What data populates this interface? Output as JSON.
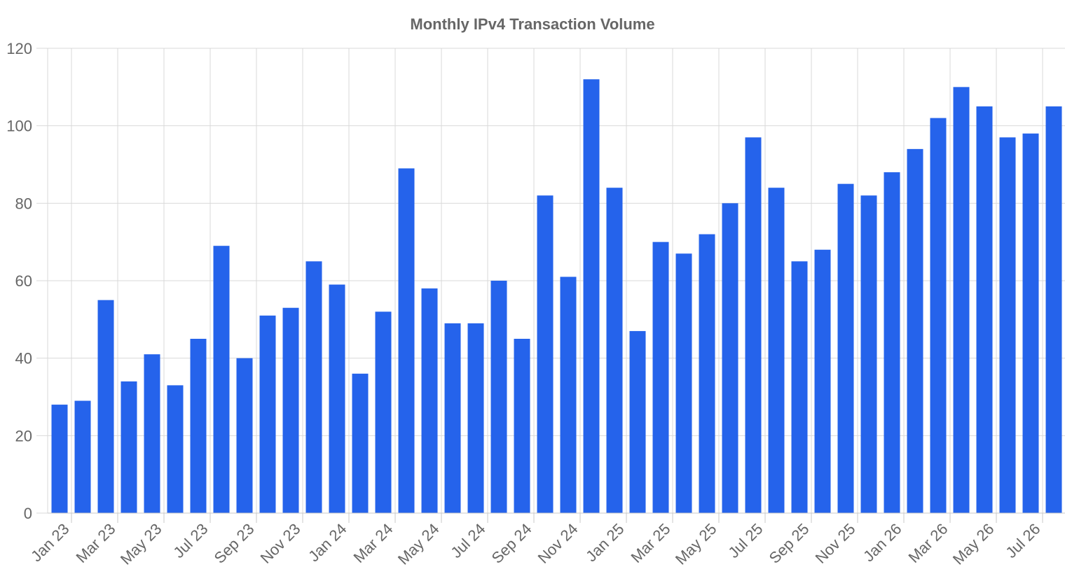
{
  "chart_data": {
    "type": "bar",
    "title": "Monthly IPv4 Transaction Volume",
    "xlabel": "",
    "ylabel": "",
    "ylim": [
      0,
      120
    ],
    "yticks": [
      0,
      20,
      40,
      60,
      80,
      100,
      120
    ],
    "grid": true,
    "bar_color": "#2563eb",
    "categories": [
      "Jan 23",
      "Feb 23",
      "Mar 23",
      "Apr 23",
      "May 23",
      "Jun 23",
      "Jul 23",
      "Aug 23",
      "Sep 23",
      "Oct 23",
      "Nov 23",
      "Dec 23",
      "Jan 24",
      "Feb 24",
      "Mar 24",
      "Apr 24",
      "May 24",
      "Jun 24",
      "Jul 24",
      "Aug 24",
      "Sep 24",
      "Oct 24",
      "Nov 24",
      "Dec 24",
      "Jan 25",
      "Feb 25",
      "Mar 25",
      "Apr 25",
      "May 25",
      "Jun 25",
      "Jul 25",
      "Aug 25",
      "Sep 25",
      "Oct 25",
      "Nov 25",
      "Dec 25",
      "Jan 26",
      "Feb 26",
      "Mar 26",
      "Apr 26",
      "May 26",
      "Jun 26",
      "Jul 26",
      "Aug 26"
    ],
    "tick_labels": [
      "Jan 23",
      "Mar 23",
      "May 23",
      "Jul 23",
      "Sep 23",
      "Nov 23",
      "Jan 24",
      "Mar 24",
      "May 24",
      "Jul 24",
      "Sep 24",
      "Nov 24",
      "Jan 25",
      "Mar 25",
      "May 25",
      "Jul 25",
      "Sep 25",
      "Nov 25",
      "Jan 26",
      "Mar 26",
      "May 26",
      "Jul 26"
    ],
    "values": [
      28,
      29,
      55,
      34,
      41,
      33,
      45,
      69,
      40,
      51,
      53,
      65,
      59,
      36,
      52,
      89,
      58,
      49,
      49,
      60,
      45,
      82,
      61,
      112,
      84,
      47,
      70,
      67,
      72,
      80,
      97,
      84,
      65,
      68,
      85,
      82,
      88,
      94,
      102,
      110,
      105,
      97,
      98,
      105
    ]
  }
}
